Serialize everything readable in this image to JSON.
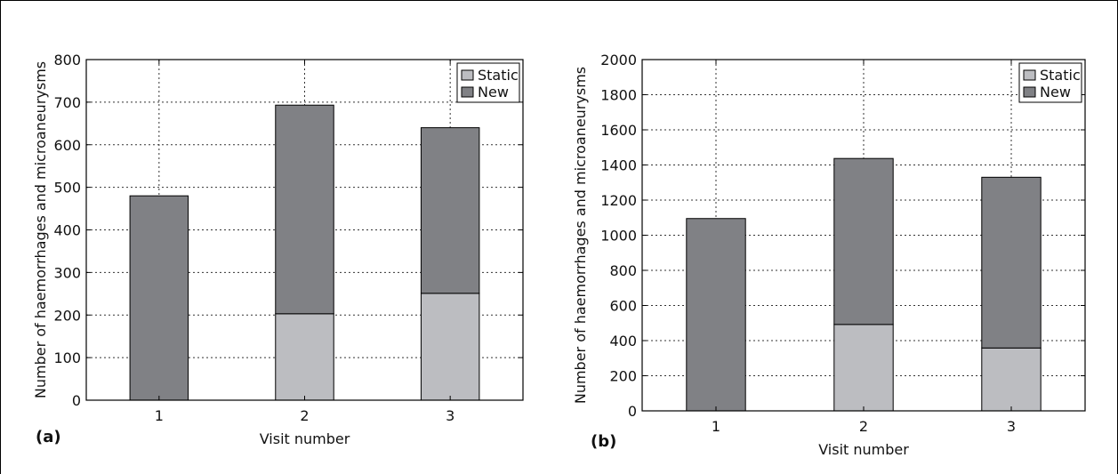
{
  "colors": {
    "static": "#bcbdc1",
    "new": "#808185",
    "grid": "#333333",
    "frame": "#000000"
  },
  "chart_data": [
    {
      "type": "bar",
      "stacked": true,
      "panel_label": "(a)",
      "categories": [
        "1",
        "2",
        "3"
      ],
      "series": [
        {
          "name": "Static",
          "values": [
            0,
            203,
            251
          ]
        },
        {
          "name": "New",
          "values": [
            480,
            490,
            389
          ]
        }
      ],
      "xlabel": "Visit number",
      "ylabel": "Number of haemorrhages and microaneurysms",
      "ylim": [
        0,
        800
      ],
      "yticks": [
        "0",
        "100",
        "200",
        "300",
        "400",
        "500",
        "600",
        "700",
        "800"
      ],
      "grid": true,
      "legend": "top-right"
    },
    {
      "type": "bar",
      "stacked": true,
      "panel_label": "(b)",
      "categories": [
        "1",
        "2",
        "3"
      ],
      "series": [
        {
          "name": "Static",
          "values": [
            0,
            492,
            358
          ]
        },
        {
          "name": "New",
          "values": [
            1095,
            945,
            972
          ]
        }
      ],
      "xlabel": "Visit number",
      "ylabel": "Number of haemorrhages and microaneurysms",
      "ylim": [
        0,
        2000
      ],
      "yticks": [
        "0",
        "200",
        "400",
        "600",
        "800",
        "1000",
        "1200",
        "1400",
        "1600",
        "1800",
        "2000"
      ],
      "grid": true,
      "legend": "top-right"
    }
  ]
}
